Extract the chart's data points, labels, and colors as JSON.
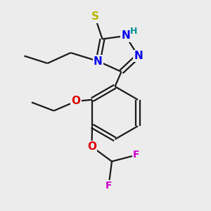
{
  "bg_color": "#ececec",
  "bond_color": "#1a1a1a",
  "bond_width": 1.6,
  "atom_labels": {
    "S": {
      "text": "S",
      "color": "#b8b800",
      "fontsize": 11,
      "fontweight": "bold"
    },
    "H": {
      "text": "H",
      "color": "#009090",
      "fontsize": 9,
      "fontweight": "bold"
    },
    "N1": {
      "text": "N",
      "color": "#0000ee",
      "fontsize": 11,
      "fontweight": "bold"
    },
    "N2": {
      "text": "N",
      "color": "#0000ee",
      "fontsize": 11,
      "fontweight": "bold"
    },
    "N3": {
      "text": "N",
      "color": "#0000ee",
      "fontsize": 11,
      "fontweight": "bold"
    },
    "O1": {
      "text": "O",
      "color": "#dd0000",
      "fontsize": 11,
      "fontweight": "bold"
    },
    "O2": {
      "text": "O",
      "color": "#dd0000",
      "fontsize": 11,
      "fontweight": "bold"
    },
    "F1": {
      "text": "F",
      "color": "#cc00cc",
      "fontsize": 10,
      "fontweight": "bold"
    },
    "F2": {
      "text": "F",
      "color": "#cc00cc",
      "fontsize": 10,
      "fontweight": "bold"
    }
  },
  "figsize": [
    3.0,
    3.0
  ],
  "dpi": 100,
  "xlim": [
    0,
    10
  ],
  "ylim": [
    0,
    10
  ]
}
